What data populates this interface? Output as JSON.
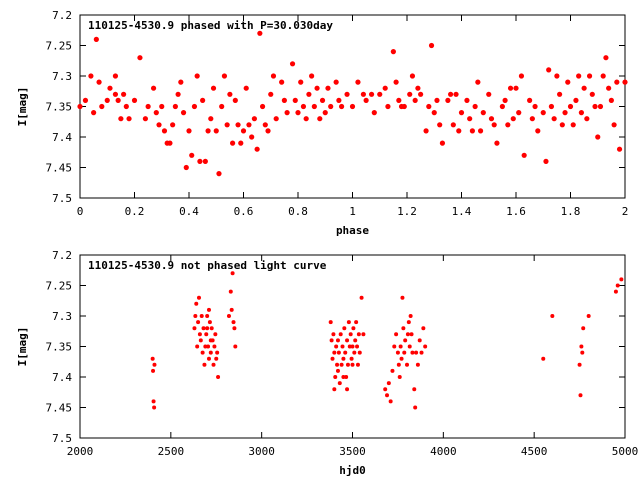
{
  "chart_data": [
    {
      "type": "scatter",
      "title": "110125-4530.9 phased with P=30.030day",
      "xlabel": "phase",
      "ylabel": "I[mag]",
      "xlim": [
        0,
        2
      ],
      "ylim": [
        7.5,
        7.2
      ],
      "y_inverted": true,
      "grid": false,
      "xticks": [
        "0",
        "0.2",
        "0.4",
        "0.6",
        "0.8",
        "1",
        "1.2",
        "1.4",
        "1.6",
        "1.8",
        "2"
      ],
      "yticks": [
        "7.2",
        "7.25",
        "7.3",
        "7.35",
        "7.4",
        "7.45",
        "7.5"
      ],
      "marker_color": "#ff0000",
      "points": [
        [
          0.0,
          7.35
        ],
        [
          0.02,
          7.34
        ],
        [
          0.04,
          7.3
        ],
        [
          0.05,
          7.36
        ],
        [
          0.06,
          7.24
        ],
        [
          0.07,
          7.31
        ],
        [
          0.08,
          7.35
        ],
        [
          0.1,
          7.34
        ],
        [
          0.11,
          7.32
        ],
        [
          0.13,
          7.3
        ],
        [
          0.13,
          7.33
        ],
        [
          0.14,
          7.34
        ],
        [
          0.15,
          7.37
        ],
        [
          0.16,
          7.33
        ],
        [
          0.17,
          7.35
        ],
        [
          0.18,
          7.37
        ],
        [
          0.2,
          7.34
        ],
        [
          0.22,
          7.27
        ],
        [
          0.24,
          7.37
        ],
        [
          0.25,
          7.35
        ],
        [
          0.27,
          7.32
        ],
        [
          0.28,
          7.36
        ],
        [
          0.29,
          7.38
        ],
        [
          0.3,
          7.35
        ],
        [
          0.31,
          7.39
        ],
        [
          0.32,
          7.41
        ],
        [
          0.33,
          7.41
        ],
        [
          0.34,
          7.38
        ],
        [
          0.35,
          7.35
        ],
        [
          0.36,
          7.33
        ],
        [
          0.37,
          7.31
        ],
        [
          0.38,
          7.36
        ],
        [
          0.39,
          7.45
        ],
        [
          0.4,
          7.39
        ],
        [
          0.41,
          7.43
        ],
        [
          0.42,
          7.35
        ],
        [
          0.43,
          7.3
        ],
        [
          0.44,
          7.44
        ],
        [
          0.45,
          7.34
        ],
        [
          0.46,
          7.44
        ],
        [
          0.47,
          7.39
        ],
        [
          0.48,
          7.37
        ],
        [
          0.49,
          7.32
        ],
        [
          0.5,
          7.39
        ],
        [
          0.51,
          7.46
        ],
        [
          0.52,
          7.35
        ],
        [
          0.53,
          7.3
        ],
        [
          0.54,
          7.38
        ],
        [
          0.55,
          7.33
        ],
        [
          0.56,
          7.41
        ],
        [
          0.57,
          7.34
        ],
        [
          0.58,
          7.38
        ],
        [
          0.59,
          7.41
        ],
        [
          0.6,
          7.39
        ],
        [
          0.61,
          7.32
        ],
        [
          0.62,
          7.38
        ],
        [
          0.63,
          7.4
        ],
        [
          0.64,
          7.37
        ],
        [
          0.65,
          7.42
        ],
        [
          0.66,
          7.23
        ],
        [
          0.67,
          7.35
        ],
        [
          0.68,
          7.38
        ],
        [
          0.69,
          7.39
        ],
        [
          0.7,
          7.33
        ],
        [
          0.71,
          7.3
        ],
        [
          0.72,
          7.37
        ],
        [
          0.74,
          7.31
        ],
        [
          0.75,
          7.34
        ],
        [
          0.76,
          7.36
        ],
        [
          0.78,
          7.28
        ],
        [
          0.79,
          7.34
        ],
        [
          0.8,
          7.36
        ],
        [
          0.81,
          7.31
        ],
        [
          0.82,
          7.35
        ],
        [
          0.83,
          7.37
        ],
        [
          0.84,
          7.33
        ],
        [
          0.85,
          7.3
        ],
        [
          0.86,
          7.35
        ],
        [
          0.87,
          7.32
        ],
        [
          0.88,
          7.37
        ],
        [
          0.89,
          7.34
        ],
        [
          0.9,
          7.36
        ],
        [
          0.91,
          7.32
        ],
        [
          0.92,
          7.35
        ],
        [
          0.94,
          7.31
        ],
        [
          0.95,
          7.34
        ],
        [
          0.96,
          7.35
        ],
        [
          0.98,
          7.33
        ],
        [
          1.0,
          7.35
        ],
        [
          1.02,
          7.31
        ],
        [
          1.04,
          7.33
        ],
        [
          1.05,
          7.34
        ],
        [
          1.07,
          7.33
        ],
        [
          1.08,
          7.36
        ],
        [
          1.1,
          7.33
        ],
        [
          1.12,
          7.32
        ],
        [
          1.13,
          7.35
        ],
        [
          1.15,
          7.26
        ],
        [
          1.16,
          7.31
        ],
        [
          1.17,
          7.34
        ],
        [
          1.18,
          7.35
        ],
        [
          1.19,
          7.35
        ],
        [
          1.21,
          7.33
        ],
        [
          1.22,
          7.3
        ],
        [
          1.23,
          7.34
        ],
        [
          1.24,
          7.32
        ],
        [
          1.25,
          7.33
        ],
        [
          1.27,
          7.39
        ],
        [
          1.28,
          7.35
        ],
        [
          1.29,
          7.25
        ],
        [
          1.3,
          7.36
        ],
        [
          1.31,
          7.34
        ],
        [
          1.32,
          7.38
        ],
        [
          1.33,
          7.41
        ],
        [
          1.35,
          7.34
        ],
        [
          1.36,
          7.33
        ],
        [
          1.37,
          7.38
        ],
        [
          1.38,
          7.33
        ],
        [
          1.39,
          7.39
        ],
        [
          1.4,
          7.36
        ],
        [
          1.42,
          7.34
        ],
        [
          1.43,
          7.37
        ],
        [
          1.44,
          7.39
        ],
        [
          1.45,
          7.35
        ],
        [
          1.46,
          7.31
        ],
        [
          1.47,
          7.39
        ],
        [
          1.48,
          7.36
        ],
        [
          1.5,
          7.33
        ],
        [
          1.51,
          7.37
        ],
        [
          1.52,
          7.38
        ],
        [
          1.53,
          7.41
        ],
        [
          1.55,
          7.35
        ],
        [
          1.56,
          7.34
        ],
        [
          1.57,
          7.38
        ],
        [
          1.58,
          7.32
        ],
        [
          1.59,
          7.37
        ],
        [
          1.6,
          7.32
        ],
        [
          1.61,
          7.36
        ],
        [
          1.62,
          7.3
        ],
        [
          1.63,
          7.43
        ],
        [
          1.65,
          7.34
        ],
        [
          1.66,
          7.37
        ],
        [
          1.67,
          7.35
        ],
        [
          1.68,
          7.39
        ],
        [
          1.7,
          7.36
        ],
        [
          1.71,
          7.44
        ],
        [
          1.72,
          7.29
        ],
        [
          1.73,
          7.35
        ],
        [
          1.74,
          7.37
        ],
        [
          1.75,
          7.3
        ],
        [
          1.76,
          7.33
        ],
        [
          1.77,
          7.38
        ],
        [
          1.78,
          7.36
        ],
        [
          1.79,
          7.31
        ],
        [
          1.8,
          7.35
        ],
        [
          1.81,
          7.38
        ],
        [
          1.82,
          7.34
        ],
        [
          1.83,
          7.3
        ],
        [
          1.84,
          7.36
        ],
        [
          1.85,
          7.32
        ],
        [
          1.86,
          7.37
        ],
        [
          1.87,
          7.3
        ],
        [
          1.88,
          7.33
        ],
        [
          1.89,
          7.35
        ],
        [
          1.9,
          7.4
        ],
        [
          1.91,
          7.35
        ],
        [
          1.92,
          7.3
        ],
        [
          1.93,
          7.27
        ],
        [
          1.94,
          7.32
        ],
        [
          1.95,
          7.34
        ],
        [
          1.96,
          7.38
        ],
        [
          1.97,
          7.31
        ],
        [
          1.98,
          7.42
        ],
        [
          2.0,
          7.31
        ]
      ]
    },
    {
      "type": "scatter",
      "title": "110125-4530.9 not phased light curve",
      "xlabel": "hjd0",
      "ylabel": "I[mag]",
      "xlim": [
        2000,
        5000
      ],
      "ylim": [
        7.5,
        7.2
      ],
      "y_inverted": true,
      "grid": false,
      "xticks": [
        "2000",
        "2500",
        "3000",
        "3500",
        "4000",
        "4500",
        "5000"
      ],
      "yticks": [
        "7.2",
        "7.25",
        "7.3",
        "7.35",
        "7.4",
        "7.45",
        "7.5"
      ],
      "marker_color": "#ff0000",
      "points": [
        [
          2400,
          7.37
        ],
        [
          2402,
          7.39
        ],
        [
          2405,
          7.44
        ],
        [
          2408,
          7.45
        ],
        [
          2410,
          7.38
        ],
        [
          2630,
          7.32
        ],
        [
          2635,
          7.3
        ],
        [
          2640,
          7.28
        ],
        [
          2645,
          7.35
        ],
        [
          2650,
          7.31
        ],
        [
          2655,
          7.27
        ],
        [
          2660,
          7.33
        ],
        [
          2665,
          7.34
        ],
        [
          2670,
          7.3
        ],
        [
          2675,
          7.36
        ],
        [
          2680,
          7.32
        ],
        [
          2685,
          7.38
        ],
        [
          2690,
          7.35
        ],
        [
          2695,
          7.33
        ],
        [
          2700,
          7.3
        ],
        [
          2705,
          7.35
        ],
        [
          2710,
          7.37
        ],
        [
          2715,
          7.31
        ],
        [
          2720,
          7.36
        ],
        [
          2725,
          7.32
        ],
        [
          2730,
          7.34
        ],
        [
          2735,
          7.38
        ],
        [
          2740,
          7.35
        ],
        [
          2745,
          7.33
        ],
        [
          2750,
          7.37
        ],
        [
          2755,
          7.36
        ],
        [
          2760,
          7.4
        ],
        [
          2700,
          7.32
        ],
        [
          2710,
          7.29
        ],
        [
          2720,
          7.34
        ],
        [
          2820,
          7.3
        ],
        [
          2830,
          7.26
        ],
        [
          2835,
          7.29
        ],
        [
          2840,
          7.23
        ],
        [
          2845,
          7.31
        ],
        [
          2850,
          7.32
        ],
        [
          2855,
          7.35
        ],
        [
          3380,
          7.31
        ],
        [
          3385,
          7.34
        ],
        [
          3390,
          7.37
        ],
        [
          3395,
          7.33
        ],
        [
          3400,
          7.36
        ],
        [
          3405,
          7.4
        ],
        [
          3410,
          7.35
        ],
        [
          3415,
          7.38
        ],
        [
          3420,
          7.34
        ],
        [
          3425,
          7.36
        ],
        [
          3430,
          7.41
        ],
        [
          3435,
          7.33
        ],
        [
          3440,
          7.38
        ],
        [
          3445,
          7.35
        ],
        [
          3450,
          7.37
        ],
        [
          3455,
          7.32
        ],
        [
          3460,
          7.36
        ],
        [
          3465,
          7.4
        ],
        [
          3470,
          7.34
        ],
        [
          3475,
          7.38
        ],
        [
          3480,
          7.31
        ],
        [
          3485,
          7.35
        ],
        [
          3490,
          7.33
        ],
        [
          3495,
          7.37
        ],
        [
          3500,
          7.35
        ],
        [
          3505,
          7.32
        ],
        [
          3510,
          7.36
        ],
        [
          3515,
          7.34
        ],
        [
          3520,
          7.31
        ],
        [
          3525,
          7.35
        ],
        [
          3530,
          7.38
        ],
        [
          3535,
          7.33
        ],
        [
          3540,
          7.36
        ],
        [
          3400,
          7.42
        ],
        [
          3420,
          7.39
        ],
        [
          3450,
          7.4
        ],
        [
          3470,
          7.42
        ],
        [
          3500,
          7.38
        ],
        [
          3550,
          7.27
        ],
        [
          3560,
          7.33
        ],
        [
          3680,
          7.42
        ],
        [
          3690,
          7.43
        ],
        [
          3700,
          7.41
        ],
        [
          3710,
          7.44
        ],
        [
          3720,
          7.39
        ],
        [
          3730,
          7.35
        ],
        [
          3740,
          7.33
        ],
        [
          3750,
          7.36
        ],
        [
          3755,
          7.38
        ],
        [
          3760,
          7.4
        ],
        [
          3765,
          7.35
        ],
        [
          3770,
          7.37
        ],
        [
          3775,
          7.27
        ],
        [
          3780,
          7.32
        ],
        [
          3785,
          7.36
        ],
        [
          3790,
          7.34
        ],
        [
          3800,
          7.38
        ],
        [
          3805,
          7.33
        ],
        [
          3810,
          7.31
        ],
        [
          3815,
          7.35
        ],
        [
          3820,
          7.3
        ],
        [
          3825,
          7.33
        ],
        [
          3830,
          7.36
        ],
        [
          3840,
          7.42
        ],
        [
          3845,
          7.45
        ],
        [
          3850,
          7.36
        ],
        [
          3860,
          7.38
        ],
        [
          3870,
          7.34
        ],
        [
          3880,
          7.36
        ],
        [
          3890,
          7.32
        ],
        [
          3900,
          7.35
        ],
        [
          4550,
          7.37
        ],
        [
          4600,
          7.3
        ],
        [
          4750,
          7.38
        ],
        [
          4755,
          7.43
        ],
        [
          4760,
          7.35
        ],
        [
          4765,
          7.36
        ],
        [
          4770,
          7.32
        ],
        [
          4800,
          7.3
        ],
        [
          4950,
          7.26
        ],
        [
          4960,
          7.25
        ],
        [
          4980,
          7.24
        ]
      ]
    }
  ]
}
